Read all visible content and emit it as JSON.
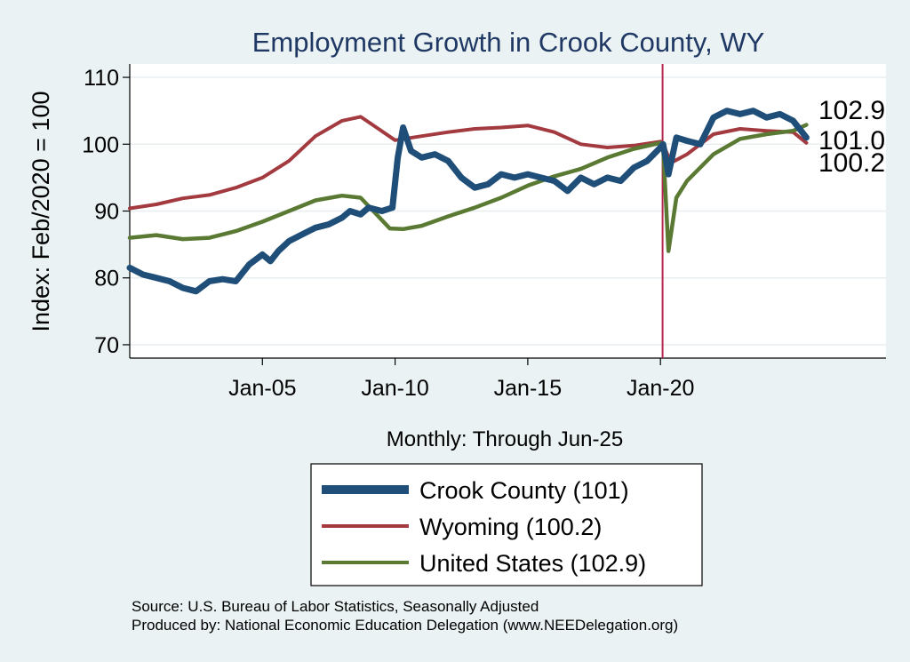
{
  "chart_data": {
    "type": "line",
    "title": "Employment Growth in Crook  County, WY",
    "xlabel": "Monthly: Through Jun-25",
    "ylabel": "Index: Feb/2020 = 100",
    "ylim": [
      68,
      112
    ],
    "xlim": [
      2000.0,
      2028.5
    ],
    "yticks": [
      70,
      80,
      90,
      100,
      110
    ],
    "xticks": [
      {
        "value": 2005.0,
        "label": "Jan-05"
      },
      {
        "value": 2010.0,
        "label": "Jan-10"
      },
      {
        "value": 2015.0,
        "label": "Jan-15"
      },
      {
        "value": 2020.0,
        "label": "Jan-20"
      }
    ],
    "reference_line": {
      "x": 2020.08,
      "color": "#b5284f"
    },
    "grid": true,
    "series": [
      {
        "name": "Wyoming",
        "legend": "Wyoming (100.2)",
        "color": "#a33a3f",
        "x": [
          2000.0,
          2001.0,
          2002.0,
          2003.0,
          2004.0,
          2005.0,
          2006.0,
          2007.0,
          2008.0,
          2008.7,
          2009.3,
          2010.0,
          2011.0,
          2012.0,
          2013.0,
          2014.0,
          2015.0,
          2016.0,
          2017.0,
          2018.0,
          2019.0,
          2020.0,
          2020.1,
          2020.4,
          2021.0,
          2022.0,
          2023.0,
          2024.0,
          2025.0,
          2025.5
        ],
        "values": [
          90.4,
          91.0,
          91.9,
          92.4,
          93.5,
          95.0,
          97.5,
          101.2,
          103.5,
          104.1,
          102.5,
          100.6,
          101.2,
          101.8,
          102.3,
          102.5,
          102.8,
          101.8,
          100.0,
          99.5,
          99.8,
          100.4,
          100.0,
          97.2,
          98.5,
          101.5,
          102.3,
          102.0,
          101.8,
          100.2
        ]
      },
      {
        "name": "United States",
        "legend": "United States (102.9)",
        "color": "#5a7a33",
        "x": [
          2000.0,
          2001.0,
          2002.0,
          2003.0,
          2004.0,
          2005.0,
          2006.0,
          2007.0,
          2008.0,
          2008.7,
          2009.3,
          2009.8,
          2010.3,
          2011.0,
          2012.0,
          2013.0,
          2014.0,
          2015.0,
          2016.0,
          2017.0,
          2018.0,
          2019.0,
          2020.0,
          2020.1,
          2020.3,
          2020.6,
          2021.0,
          2022.0,
          2023.0,
          2024.0,
          2025.0,
          2025.5
        ],
        "values": [
          86.0,
          86.4,
          85.8,
          86.0,
          87.0,
          88.4,
          90.0,
          91.6,
          92.3,
          92.0,
          89.5,
          87.4,
          87.3,
          87.8,
          89.2,
          90.5,
          92.0,
          93.8,
          95.2,
          96.3,
          98.0,
          99.3,
          100.2,
          99.5,
          84.0,
          92.0,
          94.5,
          98.5,
          100.8,
          101.5,
          102.0,
          102.9
        ]
      },
      {
        "name": "Crook  County",
        "legend": "Crook  County (101)",
        "color": "#1f4e79",
        "x": [
          2000.0,
          2000.5,
          2001.0,
          2001.5,
          2002.0,
          2002.5,
          2003.0,
          2003.5,
          2004.0,
          2004.5,
          2005.0,
          2005.3,
          2005.6,
          2006.0,
          2006.5,
          2007.0,
          2007.5,
          2008.0,
          2008.3,
          2008.7,
          2009.0,
          2009.5,
          2009.9,
          2010.1,
          2010.3,
          2010.6,
          2011.0,
          2011.5,
          2012.0,
          2012.5,
          2013.0,
          2013.5,
          2014.0,
          2014.5,
          2015.0,
          2015.5,
          2016.0,
          2016.5,
          2017.0,
          2017.5,
          2018.0,
          2018.5,
          2019.0,
          2019.5,
          2020.0,
          2020.1,
          2020.3,
          2020.6,
          2021.0,
          2021.5,
          2022.0,
          2022.5,
          2023.0,
          2023.5,
          2024.0,
          2024.5,
          2025.0,
          2025.5
        ],
        "values": [
          81.5,
          80.5,
          80.0,
          79.5,
          78.5,
          78.0,
          79.5,
          79.8,
          79.5,
          82.0,
          83.5,
          82.5,
          84.0,
          85.5,
          86.5,
          87.5,
          88.0,
          89.0,
          90.0,
          89.5,
          90.5,
          90.0,
          90.5,
          98.0,
          102.5,
          99.0,
          98.0,
          98.5,
          97.5,
          95.0,
          93.5,
          94.0,
          95.5,
          95.0,
          95.5,
          95.0,
          94.5,
          93.0,
          95.0,
          94.0,
          95.0,
          94.5,
          96.5,
          97.5,
          99.5,
          100.0,
          95.5,
          101.0,
          100.5,
          100.0,
          104.0,
          105.0,
          104.5,
          105.0,
          104.0,
          104.5,
          103.5,
          101.0
        ]
      }
    ],
    "end_labels": [
      {
        "series": "United States",
        "text": "102.9"
      },
      {
        "series": "Crook  County",
        "text": "101.0"
      },
      {
        "series": "Wyoming",
        "text": "100.2"
      }
    ]
  },
  "colors": {
    "background": "#eaf2f3",
    "plot_background": "#ffffff",
    "title": "#1f3864"
  },
  "notes": {
    "source": "Source: U.S. Bureau of Labor Statistics, Seasonally Adjusted",
    "produced_by": "Produced by: National Economic Education Delegation (www.NEEDelegation.org)"
  }
}
